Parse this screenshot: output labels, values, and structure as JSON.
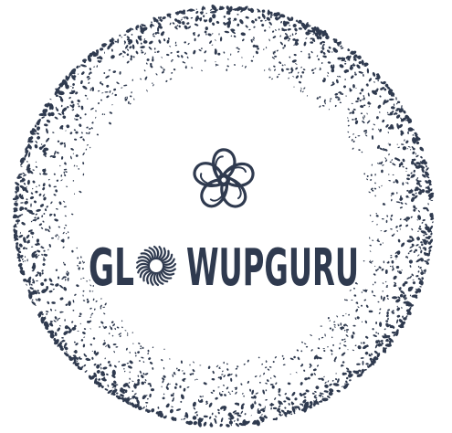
{
  "logo": {
    "text_left": "GL",
    "text_right": "WUPGURU"
  }
}
